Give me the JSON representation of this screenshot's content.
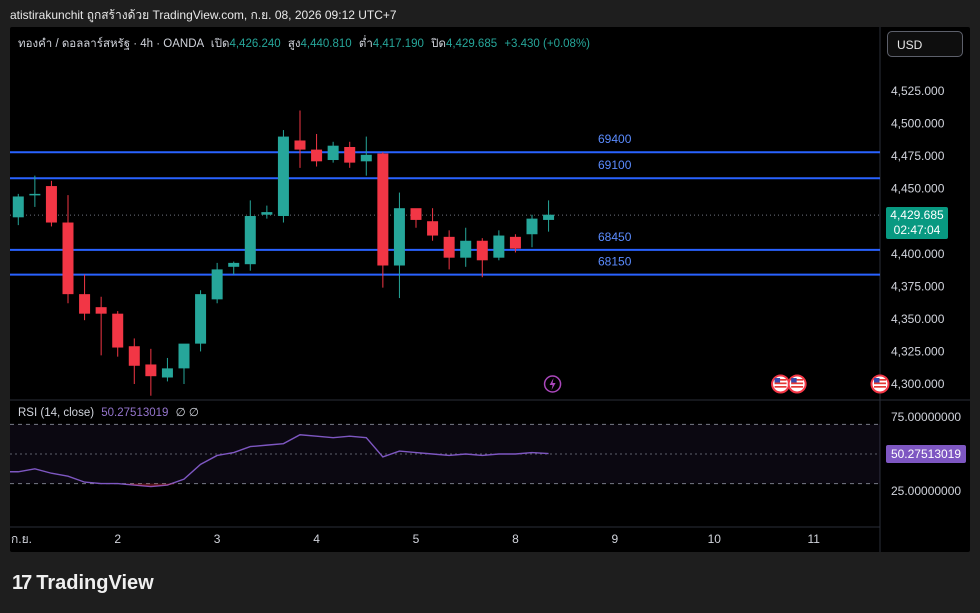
{
  "header": {
    "caption": "atistirakunchit ถูกสร้างด้วย TradingView.com, ก.ย. 08, 2026 09:12 UTC+7"
  },
  "legend": {
    "symbol": "ทองคำ / ดอลลาร์สหรัฐ · 4h · OANDA",
    "open_label": "เปิด",
    "open": "4,426.240",
    "high_label": "สูง",
    "high": "4,440.810",
    "low_label": "ต่ำ",
    "low": "4,417.190",
    "close_label": "ปิด",
    "close": "4,429.685",
    "change": "+3.430 (+0.08%)"
  },
  "currency_button": "USD",
  "price_tag": {
    "price": "4,429.685",
    "countdown": "02:47:04"
  },
  "rsi": {
    "label": "RSI (14, close)",
    "value": "50.27513019",
    "extra": "∅  ∅"
  },
  "logo": {
    "mark": "17",
    "text": "TradingView"
  },
  "colors": {
    "up": "#26a69a",
    "down": "#f23645",
    "level_line": "#2962ff",
    "rsi_line": "#7e57c2",
    "background": "#000000"
  },
  "chart_data": {
    "type": "candlestick",
    "instrument": "ทองคำ / ดอลลาร์สหรัฐ",
    "interval": "4h",
    "y_ticks": [
      "4,525.000",
      "4,500.000",
      "4,475.000",
      "4,450.000",
      "4,400.000",
      "4,375.000",
      "4,350.000",
      "4,325.000",
      "4,300.000"
    ],
    "ylim": [
      4291,
      4551
    ],
    "x_ticks": [
      {
        "label": "ก.ย.",
        "index": 0
      },
      {
        "label": "2",
        "index": 6
      },
      {
        "label": "3",
        "index": 12
      },
      {
        "label": "4",
        "index": 18
      },
      {
        "label": "5",
        "index": 24
      },
      {
        "label": "8",
        "index": 30
      },
      {
        "label": "9",
        "index": 36
      },
      {
        "label": "10",
        "index": 42
      },
      {
        "label": "11",
        "index": 48
      }
    ],
    "x_range": [
      -0.5,
      52
    ],
    "candles": [
      {
        "o": 4428,
        "h": 4446,
        "l": 4422,
        "c": 4444
      },
      {
        "o": 4445,
        "h": 4460,
        "l": 4436,
        "c": 4446
      },
      {
        "o": 4452,
        "h": 4456,
        "l": 4421,
        "c": 4424
      },
      {
        "o": 4424,
        "h": 4445,
        "l": 4362,
        "c": 4369
      },
      {
        "o": 4369,
        "h": 4384,
        "l": 4349,
        "c": 4354
      },
      {
        "o": 4359,
        "h": 4367,
        "l": 4322,
        "c": 4354
      },
      {
        "o": 4354,
        "h": 4356,
        "l": 4321,
        "c": 4328
      },
      {
        "o": 4329,
        "h": 4335,
        "l": 4300,
        "c": 4314
      },
      {
        "o": 4315,
        "h": 4327,
        "l": 4291,
        "c": 4306
      },
      {
        "o": 4305,
        "h": 4320,
        "l": 4302,
        "c": 4312
      },
      {
        "o": 4312,
        "h": 4330,
        "l": 4300,
        "c": 4331
      },
      {
        "o": 4331,
        "h": 4372,
        "l": 4325,
        "c": 4369
      },
      {
        "o": 4365,
        "h": 4393,
        "l": 4362,
        "c": 4388
      },
      {
        "o": 4390,
        "h": 4394,
        "l": 4384,
        "c": 4393
      },
      {
        "o": 4392,
        "h": 4441,
        "l": 4387,
        "c": 4429
      },
      {
        "o": 4430,
        "h": 4437,
        "l": 4427,
        "c": 4432
      },
      {
        "o": 4429,
        "h": 4495,
        "l": 4424,
        "c": 4490
      },
      {
        "o": 4487,
        "h": 4510,
        "l": 4466,
        "c": 4480
      },
      {
        "o": 4480,
        "h": 4492,
        "l": 4467,
        "c": 4471
      },
      {
        "o": 4472,
        "h": 4486,
        "l": 4470,
        "c": 4483
      },
      {
        "o": 4482,
        "h": 4486,
        "l": 4466,
        "c": 4470
      },
      {
        "o": 4471,
        "h": 4490,
        "l": 4460,
        "c": 4476
      },
      {
        "o": 4477,
        "h": 4478,
        "l": 4374,
        "c": 4391
      },
      {
        "o": 4391,
        "h": 4447,
        "l": 4366,
        "c": 4435
      },
      {
        "o": 4435,
        "h": 4434,
        "l": 4420,
        "c": 4426
      },
      {
        "o": 4425,
        "h": 4435,
        "l": 4410,
        "c": 4414
      },
      {
        "o": 4413,
        "h": 4418,
        "l": 4388,
        "c": 4397
      },
      {
        "o": 4397,
        "h": 4420,
        "l": 4390,
        "c": 4410
      },
      {
        "o": 4410,
        "h": 4412,
        "l": 4382,
        "c": 4395
      },
      {
        "o": 4397,
        "h": 4418,
        "l": 4395,
        "c": 4414
      },
      {
        "o": 4413,
        "h": 4415,
        "l": 4401,
        "c": 4404
      },
      {
        "o": 4415,
        "h": 4430,
        "l": 4405,
        "c": 4427
      },
      {
        "o": 4426,
        "h": 4441,
        "l": 4417,
        "c": 4430
      }
    ],
    "horizontal_levels": [
      {
        "label": "69400",
        "price": 4478
      },
      {
        "label": "69100",
        "price": 4458
      },
      {
        "label": "68450",
        "price": 4403
      },
      {
        "label": "68150",
        "price": 4384
      }
    ],
    "current_price": 4429.685,
    "rsi": {
      "name": "RSI (14, close)",
      "y_ticks": [
        "75.00000000",
        "25.00000000"
      ],
      "ylim": [
        19,
        80
      ],
      "upper_band": 70,
      "lower_band": 30,
      "mid": 50,
      "values": [
        38,
        40,
        37,
        35,
        31,
        30,
        30,
        29,
        28,
        29,
        33,
        43,
        49,
        51,
        55,
        56,
        57,
        63,
        62,
        61,
        62,
        61,
        48,
        52,
        51,
        50,
        49,
        50,
        49,
        50,
        50,
        51,
        50.27513019
      ]
    },
    "events": [
      {
        "kind": "lightning-event",
        "index": 32
      },
      {
        "kind": "us-flag-event",
        "index": 46
      },
      {
        "kind": "us-flag-event",
        "index": 47
      },
      {
        "kind": "us-flag-event",
        "index": 52
      }
    ]
  }
}
